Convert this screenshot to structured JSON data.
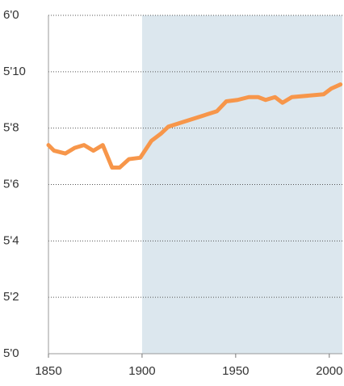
{
  "chart_data": {
    "type": "line",
    "x": [
      1850,
      1853,
      1859,
      1864,
      1869,
      1874,
      1879,
      1884,
      1888,
      1893,
      1899,
      1905,
      1910,
      1914,
      1940,
      1945,
      1951,
      1957,
      1962,
      1966,
      1971,
      1975,
      1980,
      1997,
      2001,
      2006
    ],
    "series": [
      {
        "color": "#f7964a",
        "values": [
          67.4,
          67.2,
          67.1,
          67.3,
          67.4,
          67.2,
          67.4,
          66.6,
          66.6,
          66.9,
          66.95,
          67.55,
          67.8,
          68.05,
          68.6,
          68.95,
          69.0,
          69.1,
          69.1,
          69.0,
          69.1,
          68.9,
          69.1,
          69.2,
          69.4,
          69.55
        ]
      }
    ],
    "xlim": [
      1850,
      2007
    ],
    "xticks": [
      1850,
      1900,
      1950,
      2000
    ],
    "ylim": [
      60,
      72
    ],
    "yticks": [
      {
        "value": 60,
        "label": "5'0"
      },
      {
        "value": 62,
        "label": "5'2"
      },
      {
        "value": 64,
        "label": "5'4"
      },
      {
        "value": 66,
        "label": "5'6"
      },
      {
        "value": 68,
        "label": "5'8"
      },
      {
        "value": 70,
        "label": "5'10"
      },
      {
        "value": 72,
        "label": "6'0"
      }
    ],
    "grid": true,
    "highlight_range": [
      1900,
      2007
    ],
    "highlight_color": "#dce7ee"
  }
}
